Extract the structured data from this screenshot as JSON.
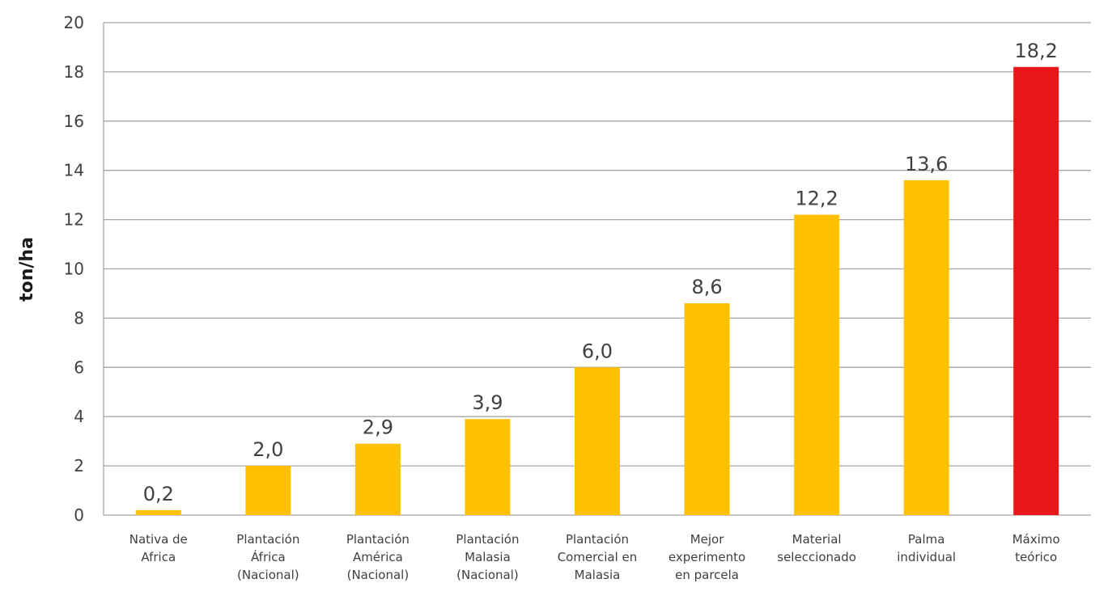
{
  "chart_data": {
    "type": "bar",
    "ylabel": "ton/ha",
    "ylim": [
      0,
      20
    ],
    "yticks": [
      "0",
      "2",
      "4",
      "6",
      "8",
      "10",
      "12",
      "14",
      "16",
      "18",
      "20"
    ],
    "grid": true,
    "categories": [
      [
        "Nativa de",
        "Africa"
      ],
      [
        "Plantación",
        "África",
        "(Nacional)"
      ],
      [
        "Plantación",
        "América",
        "(Nacional)"
      ],
      [
        "Plantación",
        "Malasia",
        "(Nacional)"
      ],
      [
        "Plantación",
        "Comercial en",
        "Malasia"
      ],
      [
        "Mejor",
        "experimento",
        "en parcela"
      ],
      [
        "Material",
        "seleccionado"
      ],
      [
        "Palma",
        "individual"
      ],
      [
        "Máximo",
        "teórico"
      ]
    ],
    "values": [
      0.2,
      2.0,
      2.9,
      3.9,
      6.0,
      8.6,
      12.2,
      13.6,
      18.2
    ],
    "value_labels": [
      "0,2",
      "2,0",
      "2,9",
      "3,9",
      "6,0",
      "8,6",
      "12,2",
      "13,6",
      "18,2"
    ],
    "colors": [
      "#FFC000",
      "#FFC000",
      "#FFC000",
      "#FFC000",
      "#FFC000",
      "#FFC000",
      "#FFC000",
      "#FFC000",
      "#E8161B"
    ]
  }
}
